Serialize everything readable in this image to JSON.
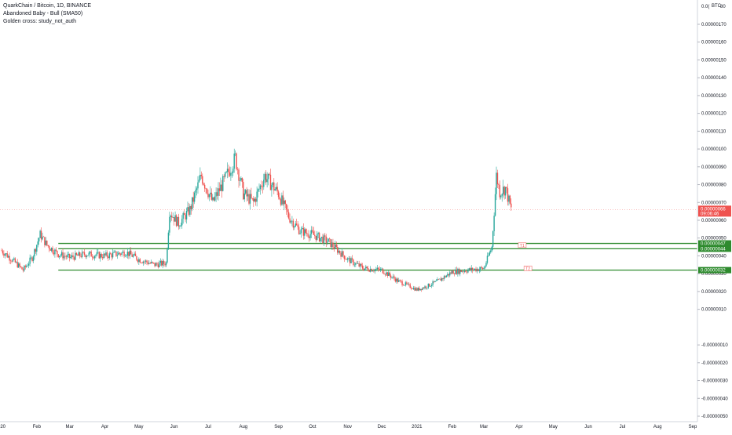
{
  "legend": {
    "title": "QuarkChain / Bitcoin, 1D, BINANCE",
    "line2": "Abandoned Baby - Bull (SMA50)",
    "line3": "Golden cross: study_not_auth"
  },
  "colors": {
    "up": "#26a69a",
    "down": "#ef5350",
    "level": "#2e8b2e",
    "last_price": "#ef5350",
    "axis_text": "#131722",
    "grid": "#e0e3eb"
  },
  "chart_data": {
    "type": "candlestick",
    "title": "QuarkChain / Bitcoin, 1D, BINANCE",
    "currency_label": "BTC",
    "top_partial_label": "0.0(",
    "top_partial_label_right": "80",
    "y_ticks": [
      {
        "v": 1.7e-07,
        "label": "0.00000170"
      },
      {
        "v": 1.6e-07,
        "label": "0.00000160"
      },
      {
        "v": 1.5e-07,
        "label": "0.00000150"
      },
      {
        "v": 1.4e-07,
        "label": "0.00000140"
      },
      {
        "v": 1.3e-07,
        "label": "0.00000130"
      },
      {
        "v": 1.2e-07,
        "label": "0.00000120"
      },
      {
        "v": 1.1e-07,
        "label": "0.00000110"
      },
      {
        "v": 1e-07,
        "label": "0.00000100"
      },
      {
        "v": 9e-08,
        "label": "0.00000090"
      },
      {
        "v": 8e-08,
        "label": "0.00000080"
      },
      {
        "v": 7e-08,
        "label": "0.00000070"
      },
      {
        "v": 6e-08,
        "label": "0.00000060"
      },
      {
        "v": 5e-08,
        "label": "0.00000050"
      },
      {
        "v": 4e-08,
        "label": "0.00000040"
      },
      {
        "v": 3e-08,
        "label": "0.00000030"
      },
      {
        "v": 2e-08,
        "label": "0.00000020"
      },
      {
        "v": 1e-08,
        "label": "0.00000010"
      },
      {
        "v": -1e-08,
        "label": "-0.00000010"
      },
      {
        "v": -2e-08,
        "label": "-0.00000020"
      },
      {
        "v": -3e-08,
        "label": "-0.00000030"
      },
      {
        "v": -4e-08,
        "label": "-0.00000040"
      },
      {
        "v": -5e-08,
        "label": "-0.00000050"
      }
    ],
    "x_ticks": [
      {
        "date": "2020-01-01",
        "label": "020"
      },
      {
        "date": "2020-02-01",
        "label": "Feb"
      },
      {
        "date": "2020-03-01",
        "label": "Mar"
      },
      {
        "date": "2020-04-01",
        "label": "Apr"
      },
      {
        "date": "2020-05-01",
        "label": "May"
      },
      {
        "date": "2020-06-01",
        "label": "Jun"
      },
      {
        "date": "2020-07-01",
        "label": "Jul"
      },
      {
        "date": "2020-08-01",
        "label": "Aug"
      },
      {
        "date": "2020-09-01",
        "label": "Sep"
      },
      {
        "date": "2020-10-01",
        "label": "Oct"
      },
      {
        "date": "2020-11-01",
        "label": "Nov"
      },
      {
        "date": "2020-12-01",
        "label": "Dec"
      },
      {
        "date": "2021-01-01",
        "label": "2021"
      },
      {
        "date": "2021-02-01",
        "label": "Feb"
      },
      {
        "date": "2021-03-01",
        "label": "Mar"
      },
      {
        "date": "2021-04-01",
        "label": "Apr"
      },
      {
        "date": "2021-05-01",
        "label": "May"
      },
      {
        "date": "2021-06-01",
        "label": "Jun"
      },
      {
        "date": "2021-07-01",
        "label": "Jul"
      },
      {
        "date": "2021-08-01",
        "label": "Aug"
      },
      {
        "date": "2021-09-01",
        "label": "Sep"
      }
    ],
    "price_path": [
      {
        "date": "2020-01-01",
        "close": 4.3e-08
      },
      {
        "date": "2020-01-10",
        "close": 3.8e-08
      },
      {
        "date": "2020-01-20",
        "close": 3.2e-08
      },
      {
        "date": "2020-01-28",
        "close": 3.9e-08
      },
      {
        "date": "2020-02-04",
        "close": 5.2e-08
      },
      {
        "date": "2020-02-10",
        "close": 4.6e-08
      },
      {
        "date": "2020-02-20",
        "close": 4.1e-08
      },
      {
        "date": "2020-03-01",
        "close": 3.9e-08
      },
      {
        "date": "2020-03-15",
        "close": 4.1e-08
      },
      {
        "date": "2020-04-01",
        "close": 4e-08
      },
      {
        "date": "2020-04-20",
        "close": 4.2e-08
      },
      {
        "date": "2020-05-01",
        "close": 3.8e-08
      },
      {
        "date": "2020-05-15",
        "close": 3.5e-08
      },
      {
        "date": "2020-05-25",
        "close": 3.6e-08
      },
      {
        "date": "2020-05-28",
        "close": 6.5e-08
      },
      {
        "date": "2020-06-05",
        "close": 5.8e-08
      },
      {
        "date": "2020-06-15",
        "close": 6.6e-08
      },
      {
        "date": "2020-06-25",
        "close": 8.5e-08
      },
      {
        "date": "2020-07-05",
        "close": 7e-08
      },
      {
        "date": "2020-07-15",
        "close": 8.2e-08
      },
      {
        "date": "2020-07-25",
        "close": 9.5e-08
      },
      {
        "date": "2020-08-01",
        "close": 7.5e-08
      },
      {
        "date": "2020-08-10",
        "close": 7e-08
      },
      {
        "date": "2020-08-20",
        "close": 8.5e-08
      },
      {
        "date": "2020-09-01",
        "close": 7.5e-08
      },
      {
        "date": "2020-09-10",
        "close": 6.2e-08
      },
      {
        "date": "2020-09-20",
        "close": 5.4e-08
      },
      {
        "date": "2020-10-01",
        "close": 5.2e-08
      },
      {
        "date": "2020-10-15",
        "close": 4.8e-08
      },
      {
        "date": "2020-11-01",
        "close": 3.8e-08
      },
      {
        "date": "2020-11-15",
        "close": 3.3e-08
      },
      {
        "date": "2020-12-01",
        "close": 3.2e-08
      },
      {
        "date": "2020-12-15",
        "close": 2.6e-08
      },
      {
        "date": "2021-01-01",
        "close": 2.1e-08
      },
      {
        "date": "2021-01-10",
        "close": 2.3e-08
      },
      {
        "date": "2021-01-20",
        "close": 2.6e-08
      },
      {
        "date": "2021-02-01",
        "close": 3.1e-08
      },
      {
        "date": "2021-02-15",
        "close": 3.2e-08
      },
      {
        "date": "2021-03-01",
        "close": 3.3e-08
      },
      {
        "date": "2021-03-08",
        "close": 4.5e-08
      },
      {
        "date": "2021-03-12",
        "close": 8.5e-08
      },
      {
        "date": "2021-03-15",
        "close": 7.6e-08
      },
      {
        "date": "2021-03-20",
        "close": 7.8e-08
      },
      {
        "date": "2021-03-25",
        "close": 6.6e-08
      }
    ],
    "horizontal_levels": [
      {
        "value": 4.7e-08,
        "label": "0.00000047",
        "start_date": "2020-02-20"
      },
      {
        "value": 4.4e-08,
        "label": "0.00000044",
        "start_date": "2020-02-20"
      },
      {
        "value": 3.2e-08,
        "label": "0.00000032",
        "start_date": "2020-02-20"
      }
    ],
    "targets": [
      {
        "label": "T1",
        "value": 4.6e-08,
        "date": "2021-04-01"
      },
      {
        "label": "T2",
        "value": 3.3e-08,
        "date": "2021-04-06"
      }
    ],
    "last_price": {
      "value": 6.6e-08,
      "label": "0.00000066",
      "countdown": "09:06:46"
    }
  }
}
